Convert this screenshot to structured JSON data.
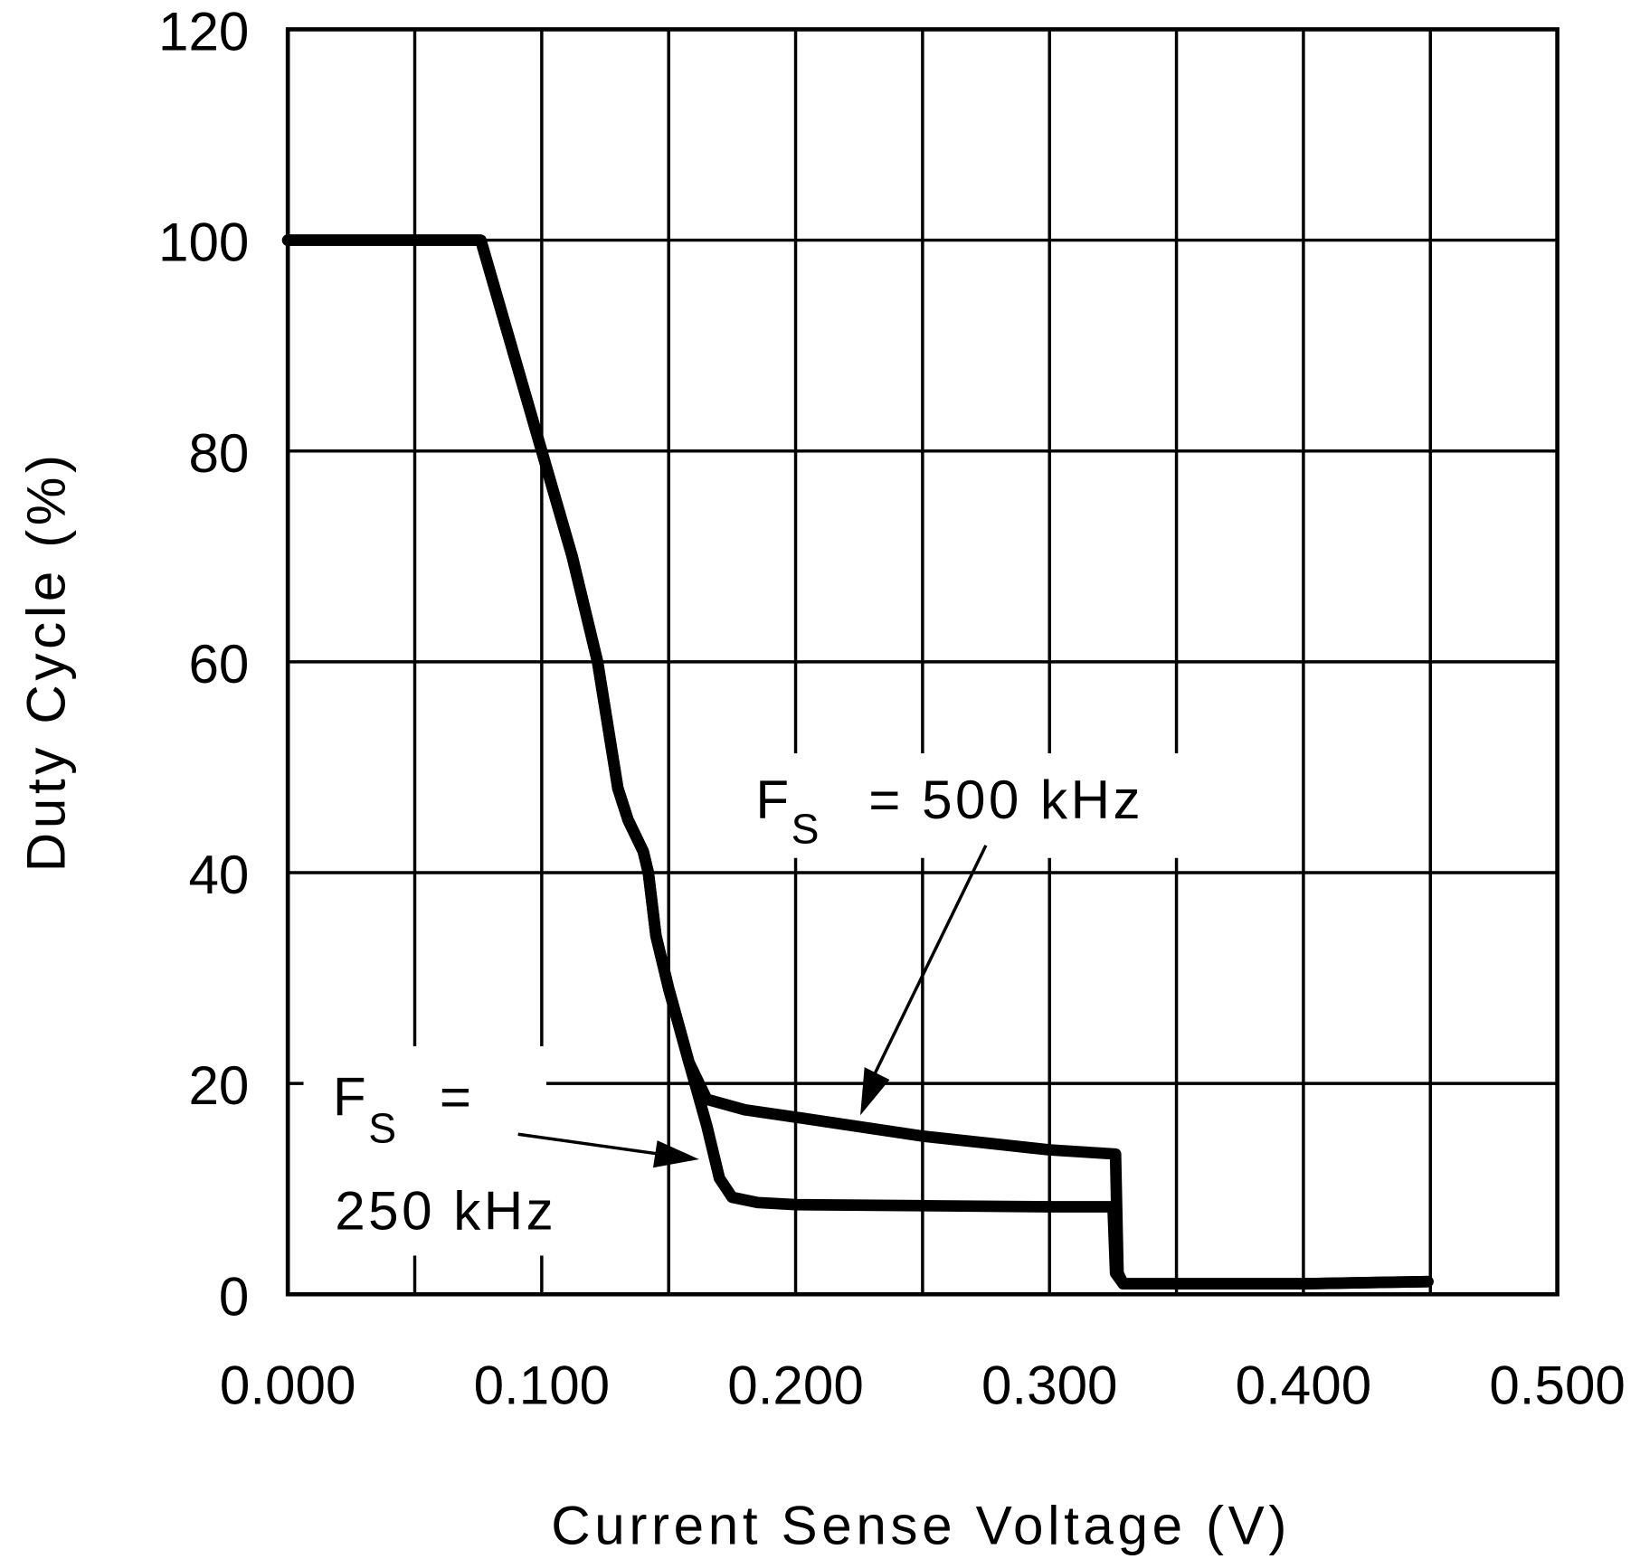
{
  "chart_data": {
    "type": "line",
    "xlabel": "Current Sense Voltage (V)",
    "ylabel": "Duty Cycle (%)",
    "xlim": [
      0,
      0.5
    ],
    "ylim": [
      0,
      120
    ],
    "x_ticks": [
      "0.000",
      "0.100",
      "0.200",
      "0.300",
      "0.400",
      "0.500"
    ],
    "y_ticks": [
      "0",
      "20",
      "40",
      "60",
      "80",
      "100",
      "120"
    ],
    "grid": true,
    "line_color": "#000000",
    "series": [
      {
        "name": "FS = 500 kHz",
        "x": [
          0.0,
          0.076,
          0.088,
          0.1,
          0.112,
          0.122,
          0.13,
          0.134,
          0.14,
          0.142,
          0.145,
          0.15,
          0.158,
          0.165,
          0.18,
          0.2,
          0.25,
          0.3,
          0.326,
          0.327,
          0.329,
          0.4,
          0.449
        ],
        "y": [
          100,
          100,
          90,
          80,
          70,
          60,
          48,
          45,
          42,
          40,
          34,
          29,
          22,
          18.5,
          17.5,
          16.8,
          15,
          13.7,
          13.3,
          2,
          1,
          1,
          1.2
        ]
      },
      {
        "name": "FS = 250 kHz",
        "x": [
          0.0,
          0.076,
          0.088,
          0.1,
          0.112,
          0.122,
          0.13,
          0.134,
          0.14,
          0.142,
          0.145,
          0.15,
          0.158,
          0.165,
          0.17,
          0.175,
          0.185,
          0.2,
          0.25,
          0.3,
          0.325,
          0.326,
          0.329,
          0.4,
          0.449
        ],
        "y": [
          100,
          100,
          90,
          80,
          70,
          60,
          48,
          45,
          42,
          40,
          34,
          29,
          22,
          16,
          11,
          9.2,
          8.7,
          8.5,
          8.4,
          8.3,
          8.3,
          2,
          1,
          1,
          1.2
        ]
      }
    ],
    "annotations": [
      {
        "label_main": "F",
        "label_sub": "S",
        "label_rest": "=  500 kHz"
      },
      {
        "label_main": "F",
        "label_sub": "S",
        "label_rest": "=",
        "label_line2": "250 kHz"
      }
    ]
  }
}
